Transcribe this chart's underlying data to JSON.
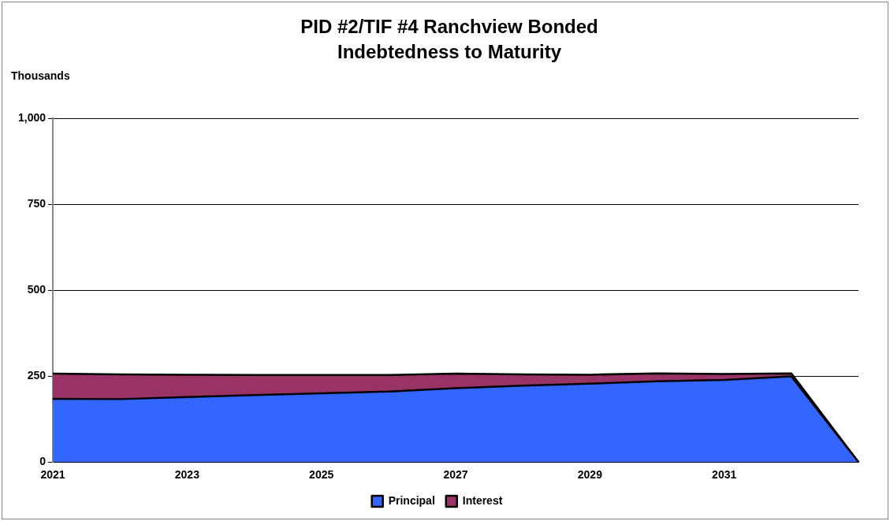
{
  "chart_data": {
    "type": "area",
    "title": "PID #2/TIF #4 Ranchview Bonded Indebtedness to Maturity",
    "ylabel": "Thousands",
    "stacked": true,
    "categories": [
      "2021",
      null,
      "2023",
      null,
      "2025",
      null,
      "2027",
      null,
      "2029",
      null,
      "2031",
      null,
      null
    ],
    "series": [
      {
        "name": "Principal",
        "color": "#3366ff",
        "values": [
          184,
          183,
          189,
          195,
          200,
          205,
          215,
          222,
          228,
          235,
          239,
          249,
          0
        ]
      },
      {
        "name": "Interest",
        "color": "#993366",
        "values": [
          73,
          72,
          65,
          58,
          53,
          48,
          42,
          33,
          26,
          23,
          17,
          9,
          0
        ]
      }
    ],
    "ylim": [
      0,
      1000
    ],
    "yticks": [
      0,
      250,
      500,
      750,
      {
        "value": 1000,
        "label": "1,000"
      }
    ],
    "grid": "y",
    "legend": "bottom"
  }
}
